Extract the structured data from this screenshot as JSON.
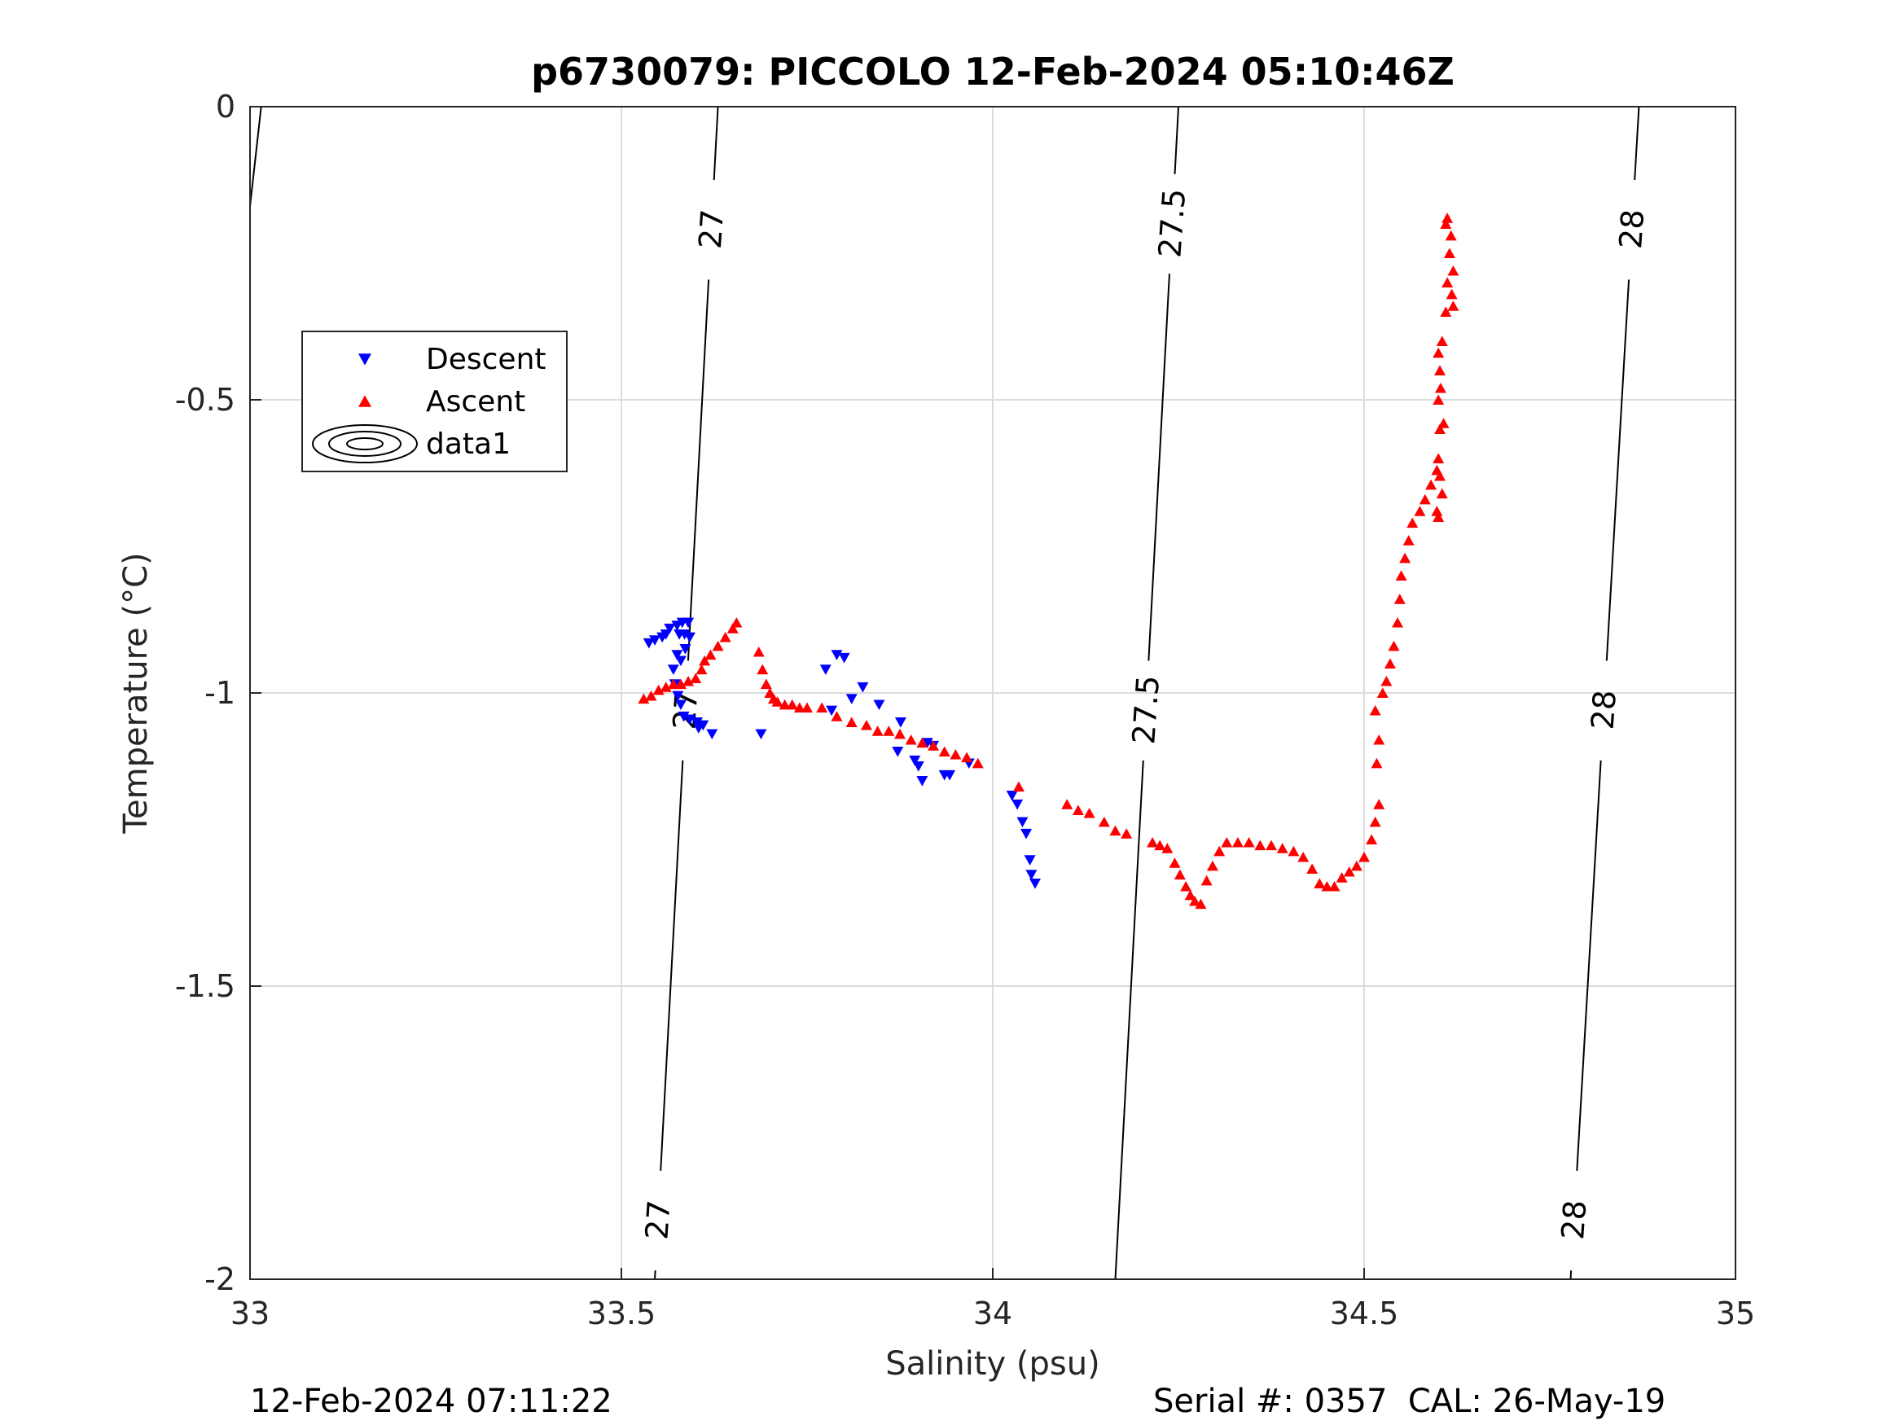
{
  "chart_data": {
    "type": "scatter",
    "title": "p6730079: PICCOLO 12-Feb-2024 05:10:46Z",
    "xlabel": "Salinity (psu)",
    "ylabel": "Temperature (°C)",
    "xlim": [
      33,
      35
    ],
    "ylim": [
      -2,
      0
    ],
    "xticks": [
      33,
      33.5,
      34,
      34.5,
      35
    ],
    "xtick_labels": [
      "33",
      "33.5",
      "34",
      "34.5",
      "35"
    ],
    "yticks": [
      0,
      -0.5,
      -1,
      -1.5,
      -2
    ],
    "ytick_labels": [
      "0",
      "-0.5",
      "-1",
      "-1.5",
      "-2"
    ],
    "grid": true,
    "legend": {
      "placement": "left-upper",
      "entries": [
        "Descent",
        "Ascent",
        "data1"
      ]
    },
    "series": [
      {
        "name": "Descent",
        "marker": "triangle-down",
        "color": "#0000ff",
        "points": [
          [
            33.537,
            -0.915
          ],
          [
            33.545,
            -0.91
          ],
          [
            33.555,
            -0.905
          ],
          [
            33.56,
            -0.9
          ],
          [
            33.565,
            -0.89
          ],
          [
            33.575,
            -0.885
          ],
          [
            33.582,
            -0.88
          ],
          [
            33.59,
            -0.88
          ],
          [
            33.585,
            -0.9
          ],
          [
            33.578,
            -0.9
          ],
          [
            33.592,
            -0.905
          ],
          [
            33.586,
            -0.925
          ],
          [
            33.58,
            -0.945
          ],
          [
            33.575,
            -0.935
          ],
          [
            33.57,
            -0.96
          ],
          [
            33.572,
            -0.985
          ],
          [
            33.576,
            -1.005
          ],
          [
            33.58,
            -1.02
          ],
          [
            33.584,
            -1.04
          ],
          [
            33.592,
            -1.045
          ],
          [
            33.602,
            -1.05
          ],
          [
            33.61,
            -1.055
          ],
          [
            33.604,
            -1.06
          ],
          [
            33.622,
            -1.07
          ],
          [
            33.688,
            -1.07
          ],
          [
            33.775,
            -0.96
          ],
          [
            33.79,
            -0.935
          ],
          [
            33.8,
            -0.94
          ],
          [
            33.81,
            -1.01
          ],
          [
            33.825,
            -0.99
          ],
          [
            33.783,
            -1.03
          ],
          [
            33.847,
            -1.02
          ],
          [
            33.876,
            -1.05
          ],
          [
            33.872,
            -1.1
          ],
          [
            33.895,
            -1.115
          ],
          [
            33.9,
            -1.125
          ],
          [
            33.905,
            -1.15
          ],
          [
            33.912,
            -1.085
          ],
          [
            33.92,
            -1.09
          ],
          [
            33.935,
            -1.14
          ],
          [
            33.942,
            -1.14
          ],
          [
            33.968,
            -1.12
          ],
          [
            34.026,
            -1.175
          ],
          [
            34.033,
            -1.19
          ],
          [
            34.04,
            -1.22
          ],
          [
            34.045,
            -1.24
          ],
          [
            34.05,
            -1.285
          ],
          [
            34.052,
            -1.31
          ],
          [
            34.057,
            -1.325
          ]
        ]
      },
      {
        "name": "Ascent",
        "marker": "triangle-up",
        "color": "#ff0000",
        "points": [
          [
            33.53,
            -1.01
          ],
          [
            33.54,
            -1.005
          ],
          [
            33.55,
            -0.995
          ],
          [
            33.56,
            -0.99
          ],
          [
            33.57,
            -0.985
          ],
          [
            33.58,
            -0.985
          ],
          [
            33.59,
            -0.98
          ],
          [
            33.6,
            -0.975
          ],
          [
            33.608,
            -0.96
          ],
          [
            33.612,
            -0.945
          ],
          [
            33.62,
            -0.935
          ],
          [
            33.63,
            -0.92
          ],
          [
            33.64,
            -0.905
          ],
          [
            33.65,
            -0.89
          ],
          [
            33.655,
            -0.88
          ],
          [
            33.685,
            -0.93
          ],
          [
            33.69,
            -0.96
          ],
          [
            33.695,
            -0.985
          ],
          [
            33.7,
            -1.0
          ],
          [
            33.705,
            -1.01
          ],
          [
            33.71,
            -1.015
          ],
          [
            33.72,
            -1.02
          ],
          [
            33.73,
            -1.02
          ],
          [
            33.74,
            -1.025
          ],
          [
            33.75,
            -1.025
          ],
          [
            33.77,
            -1.025
          ],
          [
            33.79,
            -1.04
          ],
          [
            33.81,
            -1.05
          ],
          [
            33.83,
            -1.055
          ],
          [
            33.845,
            -1.065
          ],
          [
            33.86,
            -1.065
          ],
          [
            33.875,
            -1.07
          ],
          [
            33.89,
            -1.08
          ],
          [
            33.905,
            -1.085
          ],
          [
            33.92,
            -1.09
          ],
          [
            33.935,
            -1.1
          ],
          [
            33.95,
            -1.105
          ],
          [
            33.965,
            -1.11
          ],
          [
            33.98,
            -1.12
          ],
          [
            34.035,
            -1.16
          ],
          [
            34.1,
            -1.19
          ],
          [
            34.115,
            -1.2
          ],
          [
            34.13,
            -1.205
          ],
          [
            34.15,
            -1.22
          ],
          [
            34.165,
            -1.235
          ],
          [
            34.18,
            -1.24
          ],
          [
            34.215,
            -1.255
          ],
          [
            34.225,
            -1.26
          ],
          [
            34.235,
            -1.265
          ],
          [
            34.245,
            -1.29
          ],
          [
            34.252,
            -1.31
          ],
          [
            34.26,
            -1.33
          ],
          [
            34.266,
            -1.345
          ],
          [
            34.272,
            -1.355
          ],
          [
            34.28,
            -1.36
          ],
          [
            34.288,
            -1.32
          ],
          [
            34.296,
            -1.295
          ],
          [
            34.305,
            -1.27
          ],
          [
            34.315,
            -1.255
          ],
          [
            34.33,
            -1.255
          ],
          [
            34.345,
            -1.255
          ],
          [
            34.36,
            -1.26
          ],
          [
            34.375,
            -1.26
          ],
          [
            34.39,
            -1.265
          ],
          [
            34.405,
            -1.27
          ],
          [
            34.418,
            -1.28
          ],
          [
            34.43,
            -1.3
          ],
          [
            34.44,
            -1.325
          ],
          [
            34.45,
            -1.33
          ],
          [
            34.46,
            -1.33
          ],
          [
            34.47,
            -1.315
          ],
          [
            34.48,
            -1.305
          ],
          [
            34.49,
            -1.295
          ],
          [
            34.5,
            -1.28
          ],
          [
            34.51,
            -1.25
          ],
          [
            34.515,
            -1.22
          ],
          [
            34.52,
            -1.19
          ],
          [
            34.517,
            -1.12
          ],
          [
            34.52,
            -1.08
          ],
          [
            34.515,
            -1.03
          ],
          [
            34.525,
            -1.0
          ],
          [
            34.53,
            -0.98
          ],
          [
            34.535,
            -0.95
          ],
          [
            34.54,
            -0.92
          ],
          [
            34.545,
            -0.88
          ],
          [
            34.548,
            -0.84
          ],
          [
            34.55,
            -0.8
          ],
          [
            34.555,
            -0.77
          ],
          [
            34.56,
            -0.74
          ],
          [
            34.565,
            -0.71
          ],
          [
            34.575,
            -0.69
          ],
          [
            34.582,
            -0.67
          ],
          [
            34.59,
            -0.645
          ],
          [
            34.598,
            -0.62
          ],
          [
            34.6,
            -0.6
          ],
          [
            34.602,
            -0.63
          ],
          [
            34.605,
            -0.66
          ],
          [
            34.6,
            -0.7
          ],
          [
            34.598,
            -0.69
          ],
          [
            34.602,
            -0.55
          ],
          [
            34.6,
            -0.5
          ],
          [
            34.602,
            -0.45
          ],
          [
            34.605,
            -0.4
          ],
          [
            34.61,
            -0.35
          ],
          [
            34.612,
            -0.3
          ],
          [
            34.615,
            -0.25
          ],
          [
            34.61,
            -0.2
          ],
          [
            34.612,
            -0.19
          ],
          [
            34.617,
            -0.22
          ],
          [
            34.62,
            -0.28
          ],
          [
            34.618,
            -0.32
          ],
          [
            34.62,
            -0.34
          ],
          [
            34.6,
            -0.42
          ],
          [
            34.603,
            -0.48
          ],
          [
            34.607,
            -0.54
          ]
        ]
      }
    ],
    "contours": [
      {
        "label": "27",
        "x_at_top": 33.63,
        "x_at_bottom": 33.545,
        "label_positions": [
          -0.21,
          -1.03,
          -1.9
        ]
      },
      {
        "label": "27.5",
        "x_at_top": 34.25,
        "x_at_bottom": 34.165,
        "label_positions": [
          -0.2,
          -1.03
        ]
      },
      {
        "label": "28",
        "x_at_top": 34.87,
        "x_at_bottom": 34.778,
        "label_positions": [
          -0.21,
          -1.03,
          -1.9
        ]
      }
    ]
  },
  "footer": {
    "timestamp": "12-Feb-2024 07:11:22",
    "serial_cal": "Serial #: 0357  CAL: 26-May-19"
  }
}
